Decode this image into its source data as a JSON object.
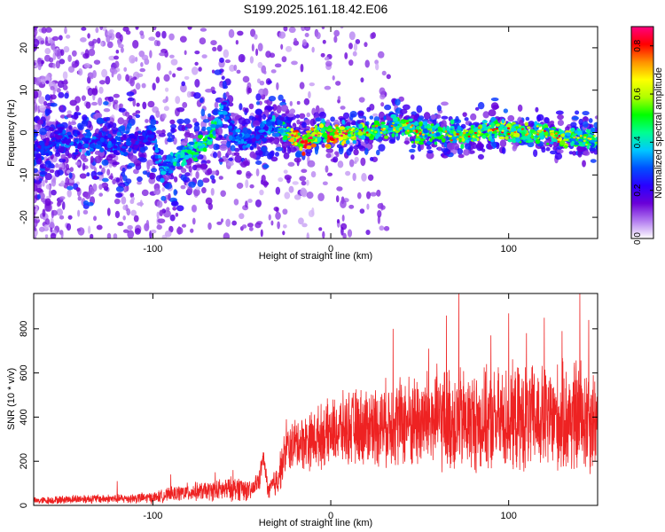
{
  "title": "S199.2025.161.18.42.E06",
  "colorbar": {
    "label": "Normalized spectral amplitude",
    "ticks": [
      "0.0",
      "0.2",
      "0.4",
      "0.6",
      "0.8"
    ],
    "tick_values": [
      0.0,
      0.2,
      0.4,
      0.6,
      0.8
    ],
    "range": [
      0.0,
      0.88
    ],
    "colormap": [
      "#ffffff",
      "#b27bf0",
      "#6a00d8",
      "#2a00ff",
      "#0050ff",
      "#00c8ff",
      "#00ff90",
      "#00ff00",
      "#b0ff00",
      "#ffff00",
      "#ff9000",
      "#ff0000",
      "#ff0080"
    ]
  },
  "chart_data": [
    {
      "type": "heatmap",
      "xlabel": "Height of straight line (km)",
      "ylabel": "Frequency (Hz)",
      "xlim": [
        -167,
        150
      ],
      "ylim": [
        -25,
        25
      ],
      "xticks": [
        -100,
        0,
        100
      ],
      "xtick_labels": [
        "-100",
        "0",
        "100"
      ],
      "yticks": [
        -20,
        -10,
        0,
        10,
        20
      ],
      "ytick_labels": [
        "-20",
        "-10",
        "0",
        "10",
        "20"
      ],
      "grid": false,
      "ridge": {
        "x": [
          -165,
          -150,
          -140,
          -130,
          -120,
          -110,
          -100,
          -95,
          -90,
          -85,
          -80,
          -75,
          -70,
          -65,
          -62,
          -60,
          -55,
          -50,
          -45,
          -40,
          -35,
          -30,
          -25,
          -20,
          -15,
          -10,
          -5,
          0,
          10,
          20,
          30,
          40,
          50,
          60,
          70,
          80,
          90,
          100,
          110,
          120,
          130,
          140,
          148
        ],
        "frequency": [
          -4,
          -1,
          -3,
          -2,
          -3,
          -2,
          0,
          -9,
          -7,
          -6,
          -5,
          -4,
          -2,
          1,
          4,
          7,
          0,
          -2,
          -1,
          0,
          1,
          2,
          0,
          -1,
          -2,
          -1,
          0,
          -1,
          0,
          0,
          1,
          2,
          0,
          0,
          -1,
          0,
          1,
          0,
          0,
          0,
          -1,
          -1,
          -2
        ],
        "amplitude": [
          0.25,
          0.3,
          0.35,
          0.3,
          0.3,
          0.25,
          0.3,
          0.35,
          0.4,
          0.45,
          0.45,
          0.5,
          0.5,
          0.45,
          0.4,
          0.35,
          0.3,
          0.35,
          0.3,
          0.3,
          0.35,
          0.4,
          0.55,
          0.75,
          0.85,
          0.7,
          0.6,
          0.75,
          0.6,
          0.55,
          0.5,
          0.55,
          0.55,
          0.5,
          0.55,
          0.55,
          0.6,
          0.6,
          0.55,
          0.55,
          0.6,
          0.5,
          0.45
        ]
      }
    },
    {
      "type": "line",
      "xlabel": "Height of straight line (km)",
      "ylabel": "SNR (10 * v/v)",
      "xlim": [
        -167,
        150
      ],
      "ylim": [
        0,
        960
      ],
      "xticks": [
        -100,
        0,
        100
      ],
      "xtick_labels": [
        "-100",
        "0",
        "100"
      ],
      "yticks": [
        0,
        200,
        400,
        600,
        800
      ],
      "ytick_labels": [
        "0",
        "200",
        "400",
        "600",
        "800"
      ],
      "grid": false,
      "series": [
        {
          "color": "#ee2222",
          "envelope_x": [
            -167,
            -140,
            -120,
            -100,
            -90,
            -80,
            -70,
            -60,
            -50,
            -45,
            -40,
            -38,
            -35,
            -30,
            -25,
            -20,
            -10,
            0,
            10,
            20,
            30,
            40,
            50,
            60,
            70,
            80,
            90,
            100,
            110,
            120,
            130,
            140,
            150
          ],
          "envelope_mean": [
            20,
            30,
            30,
            35,
            50,
            60,
            65,
            70,
            80,
            60,
            120,
            220,
            60,
            120,
            250,
            280,
            300,
            330,
            350,
            360,
            370,
            380,
            380,
            390,
            380,
            380,
            380,
            390,
            390,
            390,
            390,
            400,
            390
          ],
          "envelope_spread": [
            15,
            20,
            20,
            25,
            30,
            40,
            40,
            50,
            55,
            40,
            50,
            40,
            40,
            80,
            100,
            110,
            130,
            140,
            160,
            170,
            180,
            200,
            210,
            220,
            230,
            220,
            220,
            230,
            230,
            230,
            240,
            260,
            230
          ],
          "peaks_x": [
            -167,
            -120,
            -90,
            -65,
            -55,
            -38,
            -25,
            35,
            55,
            65,
            72,
            90,
            100,
            110,
            120,
            130,
            140,
            145
          ],
          "peaks_y": [
            60,
            110,
            140,
            150,
            160,
            240,
            390,
            800,
            710,
            860,
            960,
            770,
            870,
            780,
            850,
            790,
            960,
            840
          ]
        }
      ]
    }
  ]
}
